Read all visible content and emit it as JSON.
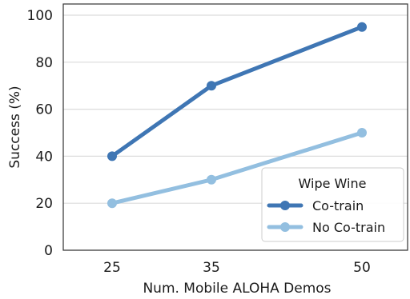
{
  "chart_data": {
    "type": "line",
    "xlabel": "Num. Mobile ALOHA Demos",
    "ylabel": "Success (%)",
    "x": [
      25,
      35,
      50
    ],
    "x_tick_labels": [
      "25",
      "35",
      "50"
    ],
    "ylim": [
      0,
      100
    ],
    "y_ticks": [
      0,
      20,
      40,
      60,
      80,
      100
    ],
    "y_tick_labels": [
      "0",
      "20",
      "40",
      "60",
      "80",
      "100"
    ],
    "grid": "horizontal",
    "legend": {
      "title": "Wipe Wine",
      "placement": "lower-right"
    },
    "series": [
      {
        "name": "Co-train",
        "values": [
          40,
          70,
          95
        ],
        "color": "#3f76b4"
      },
      {
        "name": "No Co-train",
        "values": [
          20,
          30,
          50
        ],
        "color": "#93bfe0"
      }
    ]
  }
}
